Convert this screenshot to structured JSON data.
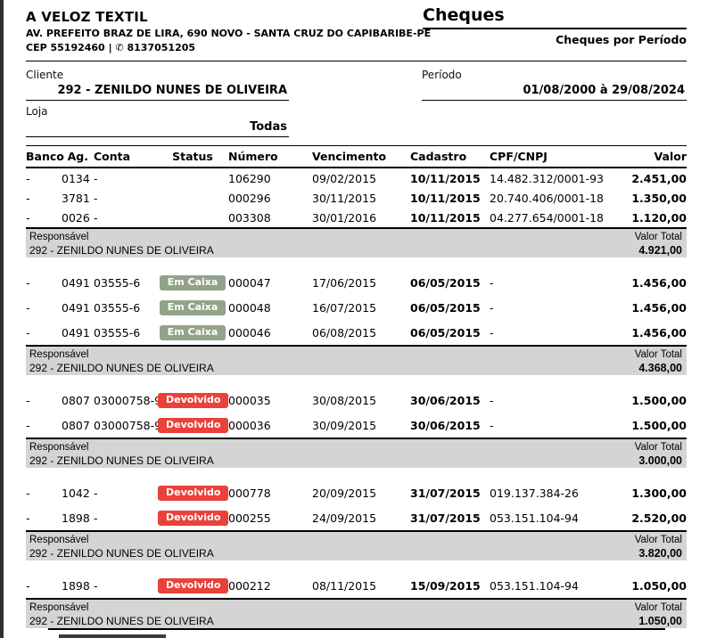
{
  "company": {
    "name": "A VELOZ TEXTIL",
    "address": "AV. PREFEITO BRAZ DE LIRA, 690 NOVO - SANTA CRUZ DO CAPIBARIBE-PE",
    "cep": "CEP 55192460",
    "separator": "|",
    "phone": "8137051205",
    "phone_icon": "✆"
  },
  "report": {
    "title": "Cheques",
    "subtitle": "Cheques por Período"
  },
  "filters": {
    "cliente": {
      "label": "Cliente",
      "value": "292 - ZENILDO NUNES DE OLIVEIRA"
    },
    "loja": {
      "label": "Loja",
      "value": "Todas"
    },
    "periodo": {
      "label": "Período",
      "value": "01/08/2000 à 29/08/2024"
    }
  },
  "table": {
    "columns": [
      "Banco",
      "Ag.",
      "Conta",
      "Status",
      "Número",
      "Vencimento",
      "Cadastro",
      "CPF/CNPJ",
      "Valor"
    ],
    "summary_labels": {
      "responsavel": "Responsável",
      "valor_total": "Valor Total"
    },
    "groups": [
      {
        "responsavel": "292 - ZENILDO NUNES DE OLIVEIRA",
        "valor_total": "4.921,00",
        "rows": [
          {
            "banco": "-",
            "ag": "0134",
            "conta": "-",
            "status": "",
            "numero": "106290",
            "vencimento": "09/02/2015",
            "cadastro": "10/11/2015",
            "cpf_cnpj": "14.482.312/0001-93",
            "valor": "2.451,00"
          },
          {
            "banco": "-",
            "ag": "3781",
            "conta": "-",
            "status": "",
            "numero": "000296",
            "vencimento": "30/11/2015",
            "cadastro": "10/11/2015",
            "cpf_cnpj": "20.740.406/0001-18",
            "valor": "1.350,00"
          },
          {
            "banco": "-",
            "ag": "0026",
            "conta": "-",
            "status": "",
            "numero": "003308",
            "vencimento": "30/01/2016",
            "cadastro": "10/11/2015",
            "cpf_cnpj": "04.277.654/0001-18",
            "valor": "1.120,00"
          }
        ]
      },
      {
        "responsavel": "292 - ZENILDO NUNES DE OLIVEIRA",
        "valor_total": "4.368,00",
        "rows": [
          {
            "banco": "-",
            "ag": "0491",
            "conta": "03555-6",
            "status": "Em Caixa",
            "numero": "000047",
            "vencimento": "17/06/2015",
            "cadastro": "06/05/2015",
            "cpf_cnpj": "-",
            "valor": "1.456,00"
          },
          {
            "banco": "-",
            "ag": "0491",
            "conta": "03555-6",
            "status": "Em Caixa",
            "numero": "000048",
            "vencimento": "16/07/2015",
            "cadastro": "06/05/2015",
            "cpf_cnpj": "-",
            "valor": "1.456,00"
          },
          {
            "banco": "-",
            "ag": "0491",
            "conta": "03555-6",
            "status": "Em Caixa",
            "numero": "000046",
            "vencimento": "06/08/2015",
            "cadastro": "06/05/2015",
            "cpf_cnpj": "-",
            "valor": "1.456,00"
          }
        ]
      },
      {
        "responsavel": "292 - ZENILDO NUNES DE OLIVEIRA",
        "valor_total": "3.000,00",
        "rows": [
          {
            "banco": "-",
            "ag": "0807",
            "conta": "03000758-9",
            "status": "Devolvido",
            "numero": "000035",
            "vencimento": "30/08/2015",
            "cadastro": "30/06/2015",
            "cpf_cnpj": "-",
            "valor": "1.500,00"
          },
          {
            "banco": "-",
            "ag": "0807",
            "conta": "03000758-9",
            "status": "Devolvido",
            "numero": "000036",
            "vencimento": "30/09/2015",
            "cadastro": "30/06/2015",
            "cpf_cnpj": "-",
            "valor": "1.500,00"
          }
        ]
      },
      {
        "responsavel": "292 - ZENILDO NUNES DE OLIVEIRA",
        "valor_total": "3.820,00",
        "rows": [
          {
            "banco": "-",
            "ag": "1042",
            "conta": "-",
            "status": "Devolvido",
            "numero": "000778",
            "vencimento": "20/09/2015",
            "cadastro": "31/07/2015",
            "cpf_cnpj": "019.137.384-26",
            "valor": "1.300,00"
          },
          {
            "banco": "-",
            "ag": "1898",
            "conta": "-",
            "status": "Devolvido",
            "numero": "000255",
            "vencimento": "24/09/2015",
            "cadastro": "31/07/2015",
            "cpf_cnpj": "053.151.104-94",
            "valor": "2.520,00"
          }
        ]
      },
      {
        "responsavel": "292 - ZENILDO NUNES DE OLIVEIRA",
        "valor_total": "1.050,00",
        "rows": [
          {
            "banco": "-",
            "ag": "1898",
            "conta": "-",
            "status": "Devolvido",
            "numero": "000212",
            "vencimento": "08/11/2015",
            "cadastro": "15/09/2015",
            "cpf_cnpj": "053.151.104-94",
            "valor": "1.050,00"
          }
        ]
      }
    ]
  },
  "colors": {
    "badge_em_caixa": "#92a389",
    "badge_devolvido": "#e9423a",
    "summary_band": "#d4d4d4"
  }
}
